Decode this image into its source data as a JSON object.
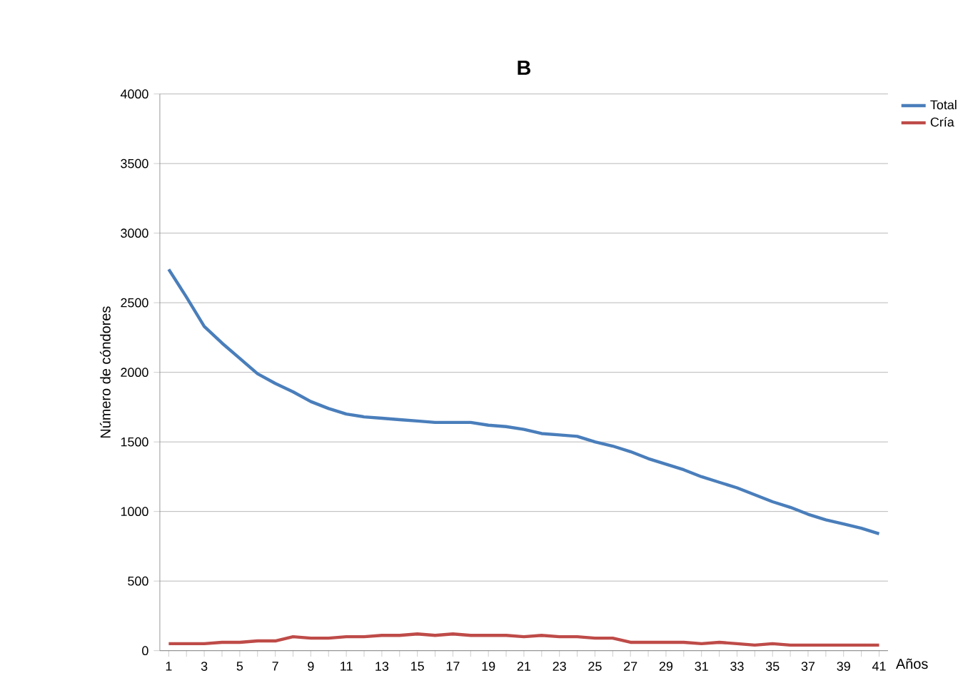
{
  "chart_data": {
    "type": "line",
    "title": "B",
    "xlabel": "Años",
    "ylabel": "Número de cóndores",
    "categories": [
      "1",
      null,
      "3",
      null,
      "5",
      null,
      "7",
      null,
      "9",
      null,
      "11",
      null,
      "13",
      null,
      "15",
      null,
      "17",
      null,
      "19",
      null,
      "21",
      null,
      "23",
      null,
      "25",
      null,
      "27",
      null,
      "29",
      null,
      "31",
      null,
      "33",
      null,
      "35",
      null,
      "37",
      null,
      "39",
      null,
      "41"
    ],
    "series": [
      {
        "name": "Total",
        "color": "#4a7ebb",
        "values": [
          2740,
          2540,
          2330,
          2210,
          2100,
          1990,
          1920,
          1860,
          1790,
          1740,
          1700,
          1680,
          1670,
          1660,
          1650,
          1640,
          1640,
          1640,
          1620,
          1610,
          1590,
          1560,
          1550,
          1540,
          1500,
          1470,
          1430,
          1380,
          1340,
          1300,
          1250,
          1210,
          1170,
          1120,
          1070,
          1030,
          980,
          940,
          910,
          880,
          840
        ]
      },
      {
        "name": "Cría",
        "color": "#be4b48",
        "values": [
          50,
          50,
          50,
          60,
          60,
          70,
          70,
          100,
          90,
          90,
          100,
          100,
          110,
          110,
          120,
          110,
          120,
          110,
          110,
          110,
          100,
          110,
          100,
          100,
          90,
          90,
          60,
          60,
          60,
          60,
          50,
          60,
          50,
          40,
          50,
          40,
          40,
          40,
          40,
          40,
          40
        ]
      }
    ],
    "ylim": [
      0,
      4000
    ],
    "yticks": [
      0,
      500,
      1000,
      1500,
      2000,
      2500,
      3000,
      3500,
      4000
    ],
    "grid": "y",
    "legend": "top right",
    "marker": "none",
    "line_style": "solid"
  }
}
